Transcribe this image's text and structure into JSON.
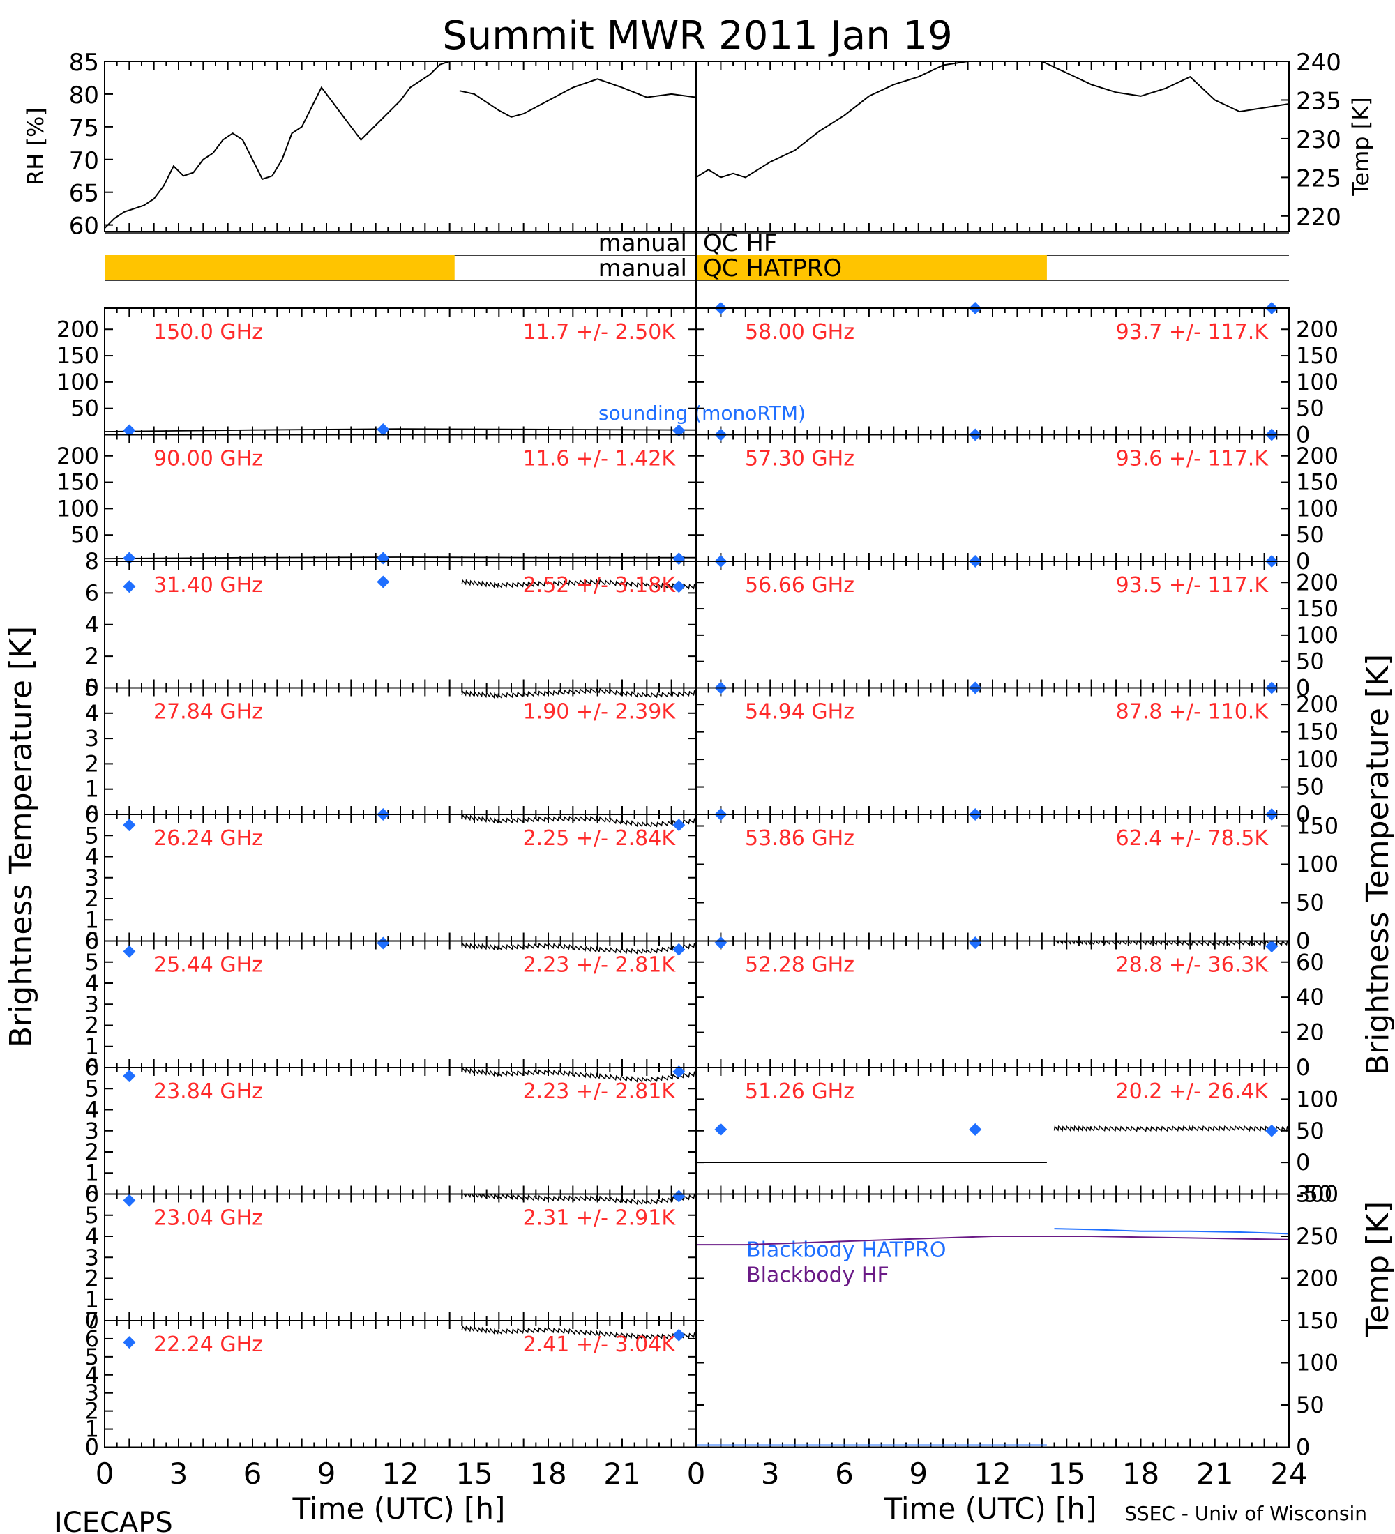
{
  "title": "Summit MWR 2011 Jan 19",
  "footer_left": "ICECAPS",
  "footer_right": "SSEC - Univ of Wisconsin",
  "x_axis_label": "Time (UTC) [h]",
  "y_label_left": "Brightness Temperature [K]",
  "y_label_right": "Brightness Temperature [K]",
  "colors": {
    "annotation": "#ff2a2a",
    "sounding": "#1f6fff",
    "qc_bar": "#ffc400",
    "blackbody_hf": "#6a1a86",
    "trace": "#000000"
  },
  "qc": {
    "hf_label": "manual",
    "hf_name": "QC HF",
    "hatpro_label": "manual",
    "hatpro_name": "QC HATPRO",
    "hf_flagged_hours": [
      0,
      14.2
    ],
    "hatpro_flagged_hours": [
      0,
      14.2
    ]
  },
  "chart_data": [
    {
      "id": "rh",
      "type": "line",
      "ylabel": "RH [%]",
      "xlim": [
        0,
        24
      ],
      "ylim": [
        59,
        85
      ],
      "yticks": [
        60,
        65,
        70,
        75,
        80,
        85
      ],
      "x": [
        0,
        0.4,
        0.8,
        1.2,
        1.6,
        2.0,
        2.4,
        2.8,
        3.2,
        3.6,
        4.0,
        4.4,
        4.8,
        5.2,
        5.6,
        6.0,
        6.4,
        6.8,
        7.2,
        7.6,
        8.0,
        8.4,
        8.8,
        9.2,
        9.6,
        10.0,
        10.4,
        10.8,
        11.2,
        11.6,
        12.0,
        12.4,
        12.8,
        13.2,
        13.6,
        14.0
      ],
      "y": [
        59.5,
        61,
        62,
        62.5,
        63,
        64,
        66,
        69,
        67.5,
        68,
        70,
        71,
        73,
        74,
        73,
        70,
        67,
        67.5,
        70,
        74,
        75,
        78,
        81,
        79,
        77,
        75,
        73,
        74.5,
        76,
        77.5,
        79,
        81,
        82,
        83,
        84.5,
        85
      ],
      "x2": [
        14.4,
        15,
        16,
        16.5,
        17,
        18,
        19,
        20,
        21,
        22,
        23,
        24
      ],
      "y2": [
        80.5,
        80,
        77.5,
        76.5,
        77,
        79,
        81,
        82.3,
        81,
        79.5,
        80,
        79.5
      ]
    },
    {
      "id": "temp",
      "type": "line",
      "ylabel": "Temp [K]",
      "xlim": [
        0,
        24
      ],
      "ylim": [
        218,
        240
      ],
      "yticks": [
        220,
        225,
        230,
        235,
        240
      ],
      "x": [
        0,
        0.5,
        1,
        1.5,
        2,
        3,
        4,
        5,
        6,
        7,
        8,
        9,
        10,
        11,
        12,
        13,
        14,
        15,
        16,
        17,
        18,
        19,
        20,
        21,
        22,
        23,
        24
      ],
      "y": [
        225,
        226,
        225,
        225.5,
        225,
        227,
        228.5,
        231,
        233,
        235.5,
        237,
        238,
        239.5,
        240,
        240.2,
        240.2,
        240,
        238.5,
        237,
        236,
        235.5,
        236.5,
        238,
        235,
        233.5,
        234,
        234.5
      ]
    },
    {
      "id": "ch150",
      "type": "line",
      "side": "left",
      "row": 0,
      "frequency": "150.0 GHz",
      "stats": "11.7 +/- 2.50K",
      "ylim": [
        0,
        240
      ],
      "yticks": [
        50,
        100,
        150,
        200
      ],
      "sounding_x": [
        1,
        11.3,
        23.3
      ],
      "sounding_y": [
        8,
        10,
        8
      ],
      "trace": [
        {
          "x": [
            0,
            6,
            12,
            18,
            24
          ],
          "y": [
            6,
            9,
            11,
            10,
            9
          ]
        }
      ],
      "sounding_label": "sounding (monoRTM)"
    },
    {
      "id": "ch90",
      "type": "line",
      "side": "left",
      "row": 1,
      "frequency": "90.00 GHz",
      "stats": "11.6 +/- 1.42K",
      "ylim": [
        0,
        240
      ],
      "yticks": [
        50,
        100,
        150,
        200
      ],
      "sounding_x": [
        1,
        11.3,
        23.3
      ],
      "sounding_y": [
        6,
        6,
        5
      ],
      "trace": [
        {
          "x": [
            0,
            6,
            12,
            18,
            24
          ],
          "y": [
            5,
            7,
            8,
            7,
            7
          ]
        }
      ]
    },
    {
      "id": "ch31",
      "type": "line",
      "side": "left",
      "row": 2,
      "frequency": "31.40 GHz",
      "stats": "2.52 +/- 3.18K",
      "ylim": [
        0,
        8
      ],
      "yticks": [
        0,
        2,
        4,
        6,
        8
      ],
      "sounding_x": [
        1,
        11.3,
        23.3
      ],
      "sounding_y": [
        6.4,
        6.7,
        6.4
      ],
      "trace": [
        {
          "x": [
            14.5,
            16,
            18,
            20,
            22,
            24
          ],
          "y": [
            6.7,
            6.5,
            6.6,
            6.7,
            6.5,
            6.4
          ],
          "noisy": true
        }
      ]
    },
    {
      "id": "ch27",
      "type": "line",
      "side": "left",
      "row": 3,
      "frequency": "27.84 GHz",
      "stats": "1.90 +/- 2.39K",
      "ylim": [
        0,
        5
      ],
      "yticks": [
        0,
        1,
        2,
        3,
        4,
        5
      ],
      "sounding_x": [],
      "sounding_y": [],
      "trace": [
        {
          "x": [
            14.5,
            16,
            18,
            20,
            22,
            24
          ],
          "y": [
            4.8,
            4.7,
            4.8,
            4.9,
            4.7,
            4.8
          ],
          "noisy": true
        }
      ]
    },
    {
      "id": "ch26",
      "type": "line",
      "side": "left",
      "row": 4,
      "frequency": "26.24 GHz",
      "stats": "2.25 +/- 2.84K",
      "ylim": [
        0,
        6
      ],
      "yticks": [
        0,
        1,
        2,
        3,
        4,
        5,
        6
      ],
      "sounding_x": [
        1,
        11.3,
        23.3
      ],
      "sounding_y": [
        5.5,
        6.0,
        5.5
      ],
      "trace": [
        {
          "x": [
            14.5,
            16,
            18,
            20,
            22,
            24
          ],
          "y": [
            5.9,
            5.7,
            5.8,
            5.8,
            5.5,
            5.7
          ],
          "noisy": true
        }
      ]
    },
    {
      "id": "ch25",
      "type": "line",
      "side": "left",
      "row": 5,
      "frequency": "25.44 GHz",
      "stats": "2.23 +/- 2.81K",
      "ylim": [
        0,
        6
      ],
      "yticks": [
        0,
        1,
        2,
        3,
        4,
        5,
        6
      ],
      "sounding_x": [
        1,
        11.3,
        23.3
      ],
      "sounding_y": [
        5.5,
        5.9,
        5.6
      ],
      "trace": [
        {
          "x": [
            14.5,
            16,
            18,
            20,
            22,
            24
          ],
          "y": [
            5.8,
            5.7,
            5.8,
            5.6,
            5.5,
            5.8
          ],
          "noisy": true
        }
      ]
    },
    {
      "id": "ch23_84",
      "type": "line",
      "side": "left",
      "row": 6,
      "frequency": "23.84 GHz",
      "stats": "2.23 +/- 2.81K",
      "ylim": [
        0,
        6
      ],
      "yticks": [
        0,
        1,
        2,
        3,
        4,
        5,
        6
      ],
      "sounding_x": [
        1,
        23.3
      ],
      "sounding_y": [
        5.6,
        5.8
      ],
      "trace": [
        {
          "x": [
            14.5,
            16,
            18,
            20,
            22,
            24
          ],
          "y": [
            5.9,
            5.7,
            5.8,
            5.6,
            5.4,
            5.7
          ],
          "noisy": true
        }
      ]
    },
    {
      "id": "ch23_04",
      "type": "line",
      "side": "left",
      "row": 7,
      "frequency": "23.04 GHz",
      "stats": "2.31 +/- 2.91K",
      "ylim": [
        0,
        6
      ],
      "yticks": [
        0,
        1,
        2,
        3,
        4,
        5,
        6
      ],
      "sounding_x": [
        1,
        23.3
      ],
      "sounding_y": [
        5.7,
        5.9
      ],
      "trace": [
        {
          "x": [
            14.5,
            16,
            18,
            20,
            22,
            24
          ],
          "y": [
            6.0,
            5.9,
            5.8,
            5.8,
            5.6,
            5.9
          ],
          "noisy": true
        }
      ]
    },
    {
      "id": "ch22",
      "type": "line",
      "side": "left",
      "row": 8,
      "frequency": "22.24 GHz",
      "stats": "2.41 +/- 3.04K",
      "ylim": [
        0,
        7
      ],
      "yticks": [
        0,
        1,
        2,
        3,
        4,
        5,
        6,
        7
      ],
      "sounding_x": [
        1,
        23.3
      ],
      "sounding_y": [
        5.8,
        6.2
      ],
      "trace": [
        {
          "x": [
            14.5,
            16,
            18,
            20,
            22,
            24
          ],
          "y": [
            6.6,
            6.4,
            6.5,
            6.3,
            6.1,
            6.2
          ],
          "noisy": true
        }
      ]
    },
    {
      "id": "ch58",
      "type": "line",
      "side": "right",
      "row": 0,
      "frequency": "58.00 GHz",
      "stats": "93.7 +/- 117.K",
      "ylim": [
        0,
        240
      ],
      "yticks": [
        0,
        50,
        100,
        150,
        200
      ],
      "sounding_x": [
        1,
        11.3,
        23.3
      ],
      "sounding_y": [
        240,
        240,
        240
      ],
      "trace": []
    },
    {
      "id": "ch57_3",
      "type": "line",
      "side": "right",
      "row": 1,
      "frequency": "57.30 GHz",
      "stats": "93.6 +/- 117.K",
      "ylim": [
        0,
        240
      ],
      "yticks": [
        0,
        50,
        100,
        150,
        200
      ],
      "sounding_x": [
        1,
        11.3,
        23.3
      ],
      "sounding_y": [
        240,
        240,
        240
      ],
      "trace": []
    },
    {
      "id": "ch56",
      "type": "line",
      "side": "right",
      "row": 2,
      "frequency": "56.66 GHz",
      "stats": "93.5 +/- 117.K",
      "ylim": [
        0,
        240
      ],
      "yticks": [
        0,
        50,
        100,
        150,
        200
      ],
      "sounding_x": [
        1,
        11.3,
        23.3
      ],
      "sounding_y": [
        240,
        240,
        240
      ],
      "trace": []
    },
    {
      "id": "ch54",
      "type": "line",
      "side": "right",
      "row": 3,
      "frequency": "54.94 GHz",
      "stats": "87.8 +/- 110.K",
      "ylim": [
        0,
        230
      ],
      "yticks": [
        0,
        50,
        100,
        150,
        200
      ],
      "sounding_x": [
        1,
        11.3,
        23.3
      ],
      "sounding_y": [
        230,
        230,
        230
      ],
      "trace": []
    },
    {
      "id": "ch53",
      "type": "line",
      "side": "right",
      "row": 4,
      "frequency": "53.86 GHz",
      "stats": "62.4 +/- 78.5K",
      "ylim": [
        0,
        165
      ],
      "yticks": [
        0,
        50,
        100,
        150
      ],
      "sounding_x": [
        1,
        11.3,
        23.3
      ],
      "sounding_y": [
        165,
        165,
        165
      ],
      "trace": []
    },
    {
      "id": "ch52",
      "type": "line",
      "side": "right",
      "row": 5,
      "frequency": "52.28 GHz",
      "stats": "28.8 +/- 36.3K",
      "ylim": [
        0,
        72
      ],
      "yticks": [
        0,
        20,
        40,
        60
      ],
      "sounding_x": [
        1,
        11.3,
        23.3
      ],
      "sounding_y": [
        71,
        71,
        69
      ],
      "trace": [
        {
          "x": [
            14.5,
            16,
            18,
            20,
            22,
            24
          ],
          "y": [
            72,
            71.5,
            71.5,
            71,
            71,
            71
          ],
          "noisy": true
        }
      ]
    },
    {
      "id": "ch51",
      "type": "line",
      "side": "right",
      "row": 6,
      "frequency": "51.26 GHz",
      "stats": "20.2 +/- 26.4K",
      "ylim": [
        -50,
        150
      ],
      "yticks": [
        -50,
        0,
        50,
        100
      ],
      "sounding_x": [
        1,
        11.3,
        23.3
      ],
      "sounding_y": [
        52,
        52,
        50
      ],
      "trace": [
        {
          "x": [
            0,
            14.2
          ],
          "y": [
            0,
            0
          ]
        },
        {
          "x": [
            14.5,
            16,
            18,
            20,
            22,
            24
          ],
          "y": [
            54,
            54,
            53,
            54,
            54,
            53
          ],
          "noisy": true
        }
      ]
    },
    {
      "id": "blackbody",
      "type": "line",
      "side": "right",
      "row": 7,
      "rows": 2,
      "ylabel": "Temp [K]",
      "ylim": [
        0,
        300
      ],
      "yticks": [
        0,
        50,
        100,
        150,
        200,
        250,
        300
      ],
      "series": [
        {
          "name": "Blackbody HATPRO",
          "x": [
            14.5,
            16,
            18,
            20,
            22,
            24
          ],
          "y": [
            259,
            258,
            256,
            256,
            255,
            253
          ]
        },
        {
          "name": "Blackbody HF",
          "x": [
            0,
            2,
            4,
            6,
            8,
            10,
            12,
            14,
            16,
            18,
            20,
            22,
            24
          ],
          "y": [
            240,
            240,
            242,
            244,
            246,
            248,
            250,
            250,
            250,
            249,
            248,
            247,
            246
          ]
        }
      ]
    }
  ]
}
